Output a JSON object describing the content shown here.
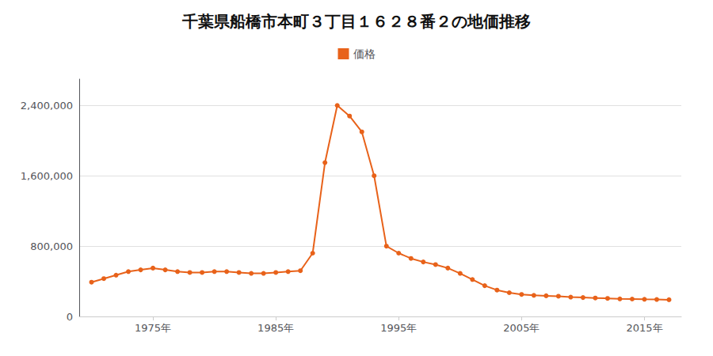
{
  "chart_data": {
    "type": "line",
    "title": "千葉県船橋市本町３丁目１６２８番２の地価推移",
    "x": [
      1970,
      1971,
      1972,
      1973,
      1974,
      1975,
      1976,
      1977,
      1978,
      1979,
      1980,
      1981,
      1982,
      1983,
      1984,
      1985,
      1986,
      1987,
      1988,
      1989,
      1990,
      1991,
      1992,
      1993,
      1994,
      1995,
      1996,
      1997,
      1998,
      1999,
      2000,
      2001,
      2002,
      2003,
      2004,
      2005,
      2006,
      2007,
      2008,
      2009,
      2010,
      2011,
      2012,
      2013,
      2014,
      2015,
      2016,
      2017
    ],
    "series": [
      {
        "name": "価格",
        "color": "#e8621a",
        "marker": "circle",
        "values": [
          390000,
          430000,
          470000,
          510000,
          530000,
          550000,
          530000,
          510000,
          500000,
          500000,
          510000,
          510000,
          500000,
          490000,
          490000,
          500000,
          510000,
          520000,
          720000,
          1750000,
          2400000,
          2280000,
          2100000,
          1600000,
          800000,
          720000,
          660000,
          620000,
          590000,
          550000,
          490000,
          420000,
          350000,
          300000,
          270000,
          250000,
          240000,
          235000,
          230000,
          220000,
          215000,
          210000,
          205000,
          200000,
          198000,
          195000,
          193000,
          190000
        ]
      }
    ],
    "xlim": [
      1969,
      2018
    ],
    "xticks": [
      {
        "value": 1975,
        "label": "1975年"
      },
      {
        "value": 1985,
        "label": "1985年"
      },
      {
        "value": 1995,
        "label": "1995年"
      },
      {
        "value": 2005,
        "label": "2005年"
      },
      {
        "value": 2015,
        "label": "2015年"
      }
    ],
    "ylim": [
      0,
      2700000
    ],
    "yticks": [
      0,
      {
        "value": 800000,
        "label": "800,000"
      },
      {
        "value": 1600000,
        "label": "1,600,000"
      },
      {
        "value": 2400000,
        "label": "2,400,000"
      }
    ],
    "grid": true,
    "legend": "top"
  }
}
